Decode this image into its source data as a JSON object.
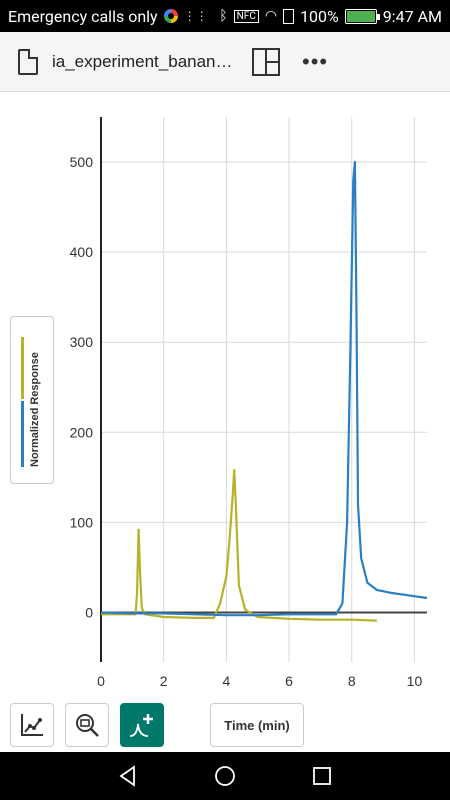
{
  "status_bar": {
    "carrier_text": "Emergency calls only",
    "battery_percent": "100%",
    "time": "9:47 AM",
    "nfc_label": "NFC"
  },
  "app_bar": {
    "title": "ia_experiment_banan…"
  },
  "chart_data": {
    "type": "line",
    "xlabel": "Time (min)",
    "ylabel": "Normalized Response",
    "xlim": [
      0,
      10.4
    ],
    "ylim": [
      -55,
      550
    ],
    "x_ticks": [
      "0",
      "2",
      "4",
      "6",
      "8",
      "10"
    ],
    "y_ticks": [
      "0",
      "100",
      "200",
      "300",
      "400",
      "500"
    ],
    "grid": true,
    "series": [
      {
        "color": "#b5b32a",
        "x": [
          0,
          1.1,
          1.15,
          1.2,
          1.25,
          1.3,
          1.4,
          2.0,
          3.0,
          3.6,
          3.8,
          4.0,
          4.1,
          4.2,
          4.25,
          4.3,
          4.4,
          4.6,
          5.0,
          6.0,
          7.0,
          8.0,
          8.8
        ],
        "y": [
          -2,
          -2,
          20,
          92,
          40,
          5,
          -2,
          -5,
          -6,
          -6,
          10,
          40,
          80,
          130,
          158,
          120,
          30,
          3,
          -5,
          -7,
          -8,
          -8,
          -9
        ]
      },
      {
        "color": "#2a7fc4",
        "x": [
          0,
          1.0,
          2.0,
          3.0,
          4.0,
          5.0,
          6.0,
          7.0,
          7.5,
          7.7,
          7.85,
          7.95,
          8.05,
          8.1,
          8.15,
          8.2,
          8.3,
          8.5,
          8.8,
          9.2,
          9.8,
          10.4
        ],
        "y": [
          0,
          -1,
          -1,
          -2,
          -3,
          -3,
          -2,
          -2,
          -2,
          10,
          100,
          280,
          480,
          500,
          330,
          120,
          60,
          33,
          25,
          22,
          19,
          16
        ]
      }
    ]
  },
  "controls": {
    "time_button_label": "Time (min)"
  }
}
